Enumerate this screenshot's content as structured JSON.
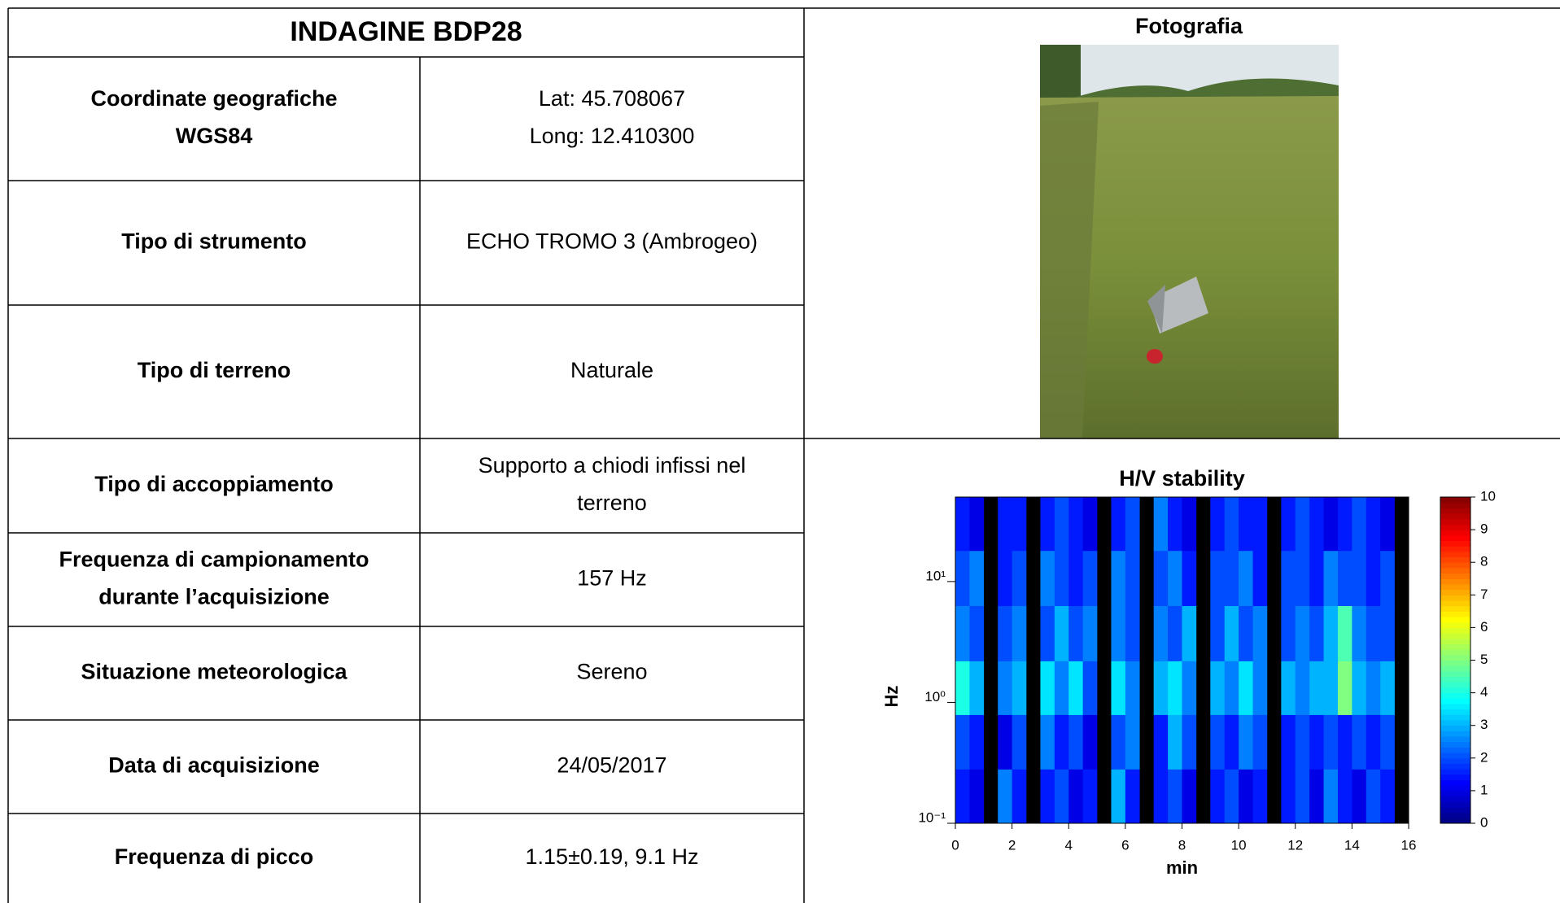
{
  "table": {
    "title": "INDAGINE BDP28",
    "rows": [
      {
        "label": [
          "Coordinate geografiche",
          "WGS84"
        ],
        "value": [
          "Lat: 45.708067",
          "Long: 12.410300"
        ]
      },
      {
        "label": [
          "Tipo di strumento"
        ],
        "value": [
          "ECHO TROMO 3 (Ambrogeo)"
        ]
      },
      {
        "label": [
          "Tipo di terreno"
        ],
        "value": [
          "Naturale"
        ]
      },
      {
        "label": [
          "Tipo di accoppiamento"
        ],
        "value": [
          "Supporto a chiodi infissi nel",
          "terreno"
        ]
      },
      {
        "label": [
          "Frequenza di campionamento",
          "durante l’acquisizione"
        ],
        "value": [
          "157 Hz"
        ]
      },
      {
        "label": [
          "Situazione meteorologica"
        ],
        "value": [
          "Sereno"
        ]
      },
      {
        "label": [
          "Data di acquisizione"
        ],
        "value": [
          "24/05/2017"
        ]
      },
      {
        "label": [
          "Frequenza di picco"
        ],
        "value": [
          "1.15±0.19, 9.1 Hz"
        ]
      }
    ]
  },
  "photo": {
    "title": "Fotografia"
  },
  "chart_data": {
    "type": "heatmap",
    "title": "H/V stability",
    "x_label": "min",
    "y_label": "Hz",
    "colormap": "jet",
    "log_y": true,
    "x_bins": [
      0,
      0.5,
      1,
      1.5,
      2,
      2.5,
      3,
      3.5,
      4,
      4.5,
      5,
      5.5,
      6,
      6.5,
      7,
      7.5,
      8,
      8.5,
      9,
      9.5,
      10,
      10.5,
      11,
      11.5,
      12,
      12.5,
      13,
      13.5,
      14,
      14.5,
      15,
      15.5,
      16
    ],
    "y_bins": [
      0.1,
      0.28,
      0.79,
      2.2,
      6.3,
      18,
      50
    ],
    "values": [
      [
        1.5,
        1,
        null,
        2.5,
        1.5,
        null,
        1.5,
        2,
        1,
        1.5,
        null,
        3,
        1.5,
        null,
        1.5,
        2,
        1,
        null,
        1.5,
        2,
        1,
        1.5,
        null,
        1.5,
        2,
        1,
        2.5,
        1.5,
        1,
        2,
        1.5,
        null
      ],
      [
        2,
        1.5,
        null,
        1,
        2,
        null,
        2.5,
        1.5,
        2,
        1,
        null,
        2,
        2.5,
        null,
        1.5,
        3,
        2,
        null,
        2,
        1.5,
        2.5,
        2,
        null,
        1.5,
        2,
        1.5,
        2,
        1.5,
        2,
        1.5,
        2,
        null
      ],
      [
        4,
        3,
        null,
        2.5,
        3,
        null,
        3.5,
        2.5,
        3.5,
        2,
        null,
        3.5,
        2.5,
        null,
        3,
        3.5,
        2.5,
        null,
        3,
        2.5,
        3.5,
        2.5,
        null,
        3,
        2.5,
        3,
        3,
        5,
        3,
        2.5,
        3,
        null
      ],
      [
        2.5,
        2,
        null,
        2,
        2.5,
        null,
        2,
        3,
        2,
        2.5,
        null,
        2.5,
        2,
        null,
        2.5,
        2,
        3,
        null,
        2,
        3,
        2,
        2.5,
        null,
        2,
        2.5,
        2,
        3,
        4.5,
        2.5,
        2,
        2,
        null
      ],
      [
        2,
        2.5,
        null,
        1.5,
        2,
        null,
        2.5,
        2,
        1.5,
        2,
        null,
        2.5,
        2,
        null,
        2,
        2.5,
        1.5,
        null,
        2,
        2,
        2.5,
        1.5,
        null,
        2,
        2,
        1.5,
        2.5,
        2,
        2,
        1.5,
        2,
        null
      ],
      [
        1.5,
        1,
        null,
        1.5,
        1.5,
        null,
        1.5,
        2,
        1.5,
        1,
        null,
        1.5,
        2,
        null,
        2.5,
        1.5,
        1,
        null,
        1.5,
        2,
        1.5,
        1.5,
        null,
        1.5,
        2,
        1.5,
        1,
        1.5,
        2,
        1.5,
        1,
        null
      ]
    ],
    "xlim": [
      0,
      16
    ],
    "xticks": [
      0,
      2,
      4,
      6,
      8,
      10,
      12,
      14,
      16
    ],
    "ylim": [
      0.1,
      50
    ],
    "yticks": [
      {
        "value": 0.1,
        "label": "10⁻¹"
      },
      {
        "value": 1,
        "label": "10⁰"
      },
      {
        "value": 10,
        "label": "10¹"
      }
    ],
    "colorbar": {
      "lim": [
        0,
        10
      ],
      "ticks": [
        0,
        1,
        2,
        3,
        4,
        5,
        6,
        7,
        8,
        9,
        10
      ]
    }
  }
}
